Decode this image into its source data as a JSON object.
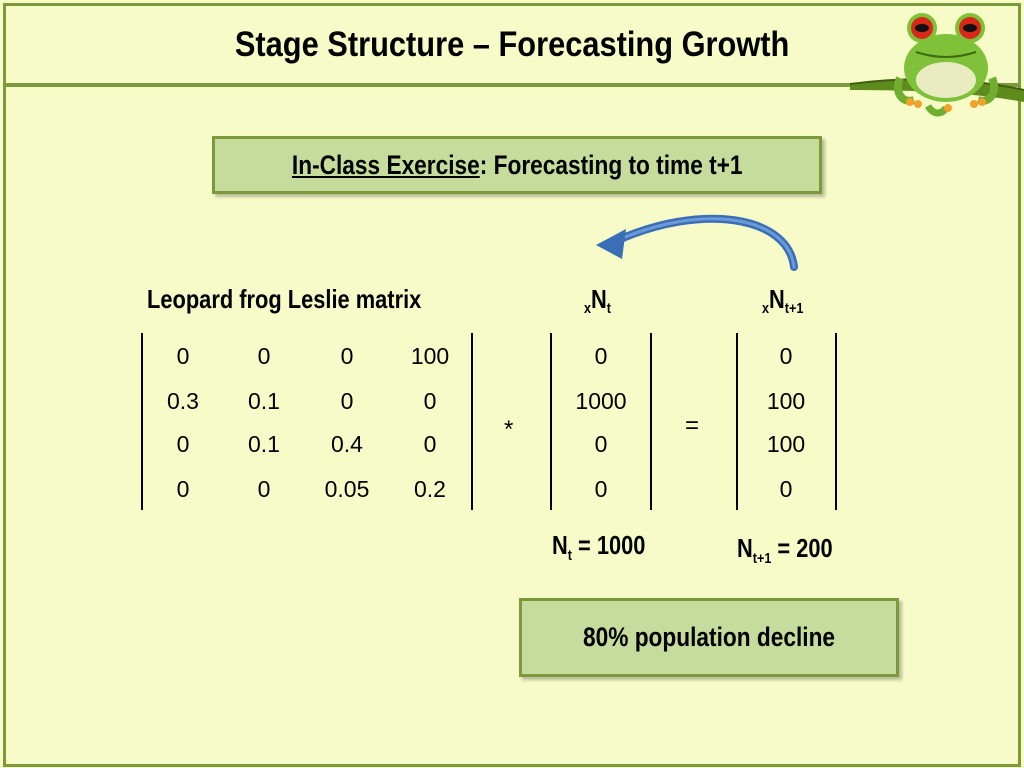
{
  "slide": {
    "title": "Stage Structure – Forecasting Growth"
  },
  "exercise": {
    "label": "In-Class Exercise",
    "rest": ": Forecasting to time t+1"
  },
  "matrix": {
    "heading": "Leopard frog Leslie matrix",
    "rows": [
      [
        "0",
        "0",
        "0",
        "100"
      ],
      [
        "0.3",
        "0.1",
        "0",
        "0"
      ],
      [
        "0",
        "0.1",
        "0.4",
        "0"
      ],
      [
        "0",
        "0",
        "0.05",
        "0.2"
      ]
    ]
  },
  "vector_nt": {
    "pre_sub": "x",
    "base": "N",
    "post_sub": "t",
    "values": [
      "0",
      "1000",
      "0",
      "0"
    ]
  },
  "vector_nt1": {
    "pre_sub": "x",
    "base": "N",
    "post_sub": "t+1",
    "values": [
      "0",
      "100",
      "100",
      "0"
    ]
  },
  "operators": {
    "multiply": "*",
    "equals": "="
  },
  "totals": {
    "nt": {
      "base": "N",
      "sub": "t",
      "value": " = 1000"
    },
    "nt1": {
      "base": "N",
      "sub": "t+1",
      "value": " = 200"
    }
  },
  "result": {
    "text": "80% population decline"
  },
  "colors": {
    "background": "#f7fbc8",
    "border": "#7d9a3a",
    "box_fill": "#c6dc9c",
    "arrow": "#3a6fb8"
  }
}
